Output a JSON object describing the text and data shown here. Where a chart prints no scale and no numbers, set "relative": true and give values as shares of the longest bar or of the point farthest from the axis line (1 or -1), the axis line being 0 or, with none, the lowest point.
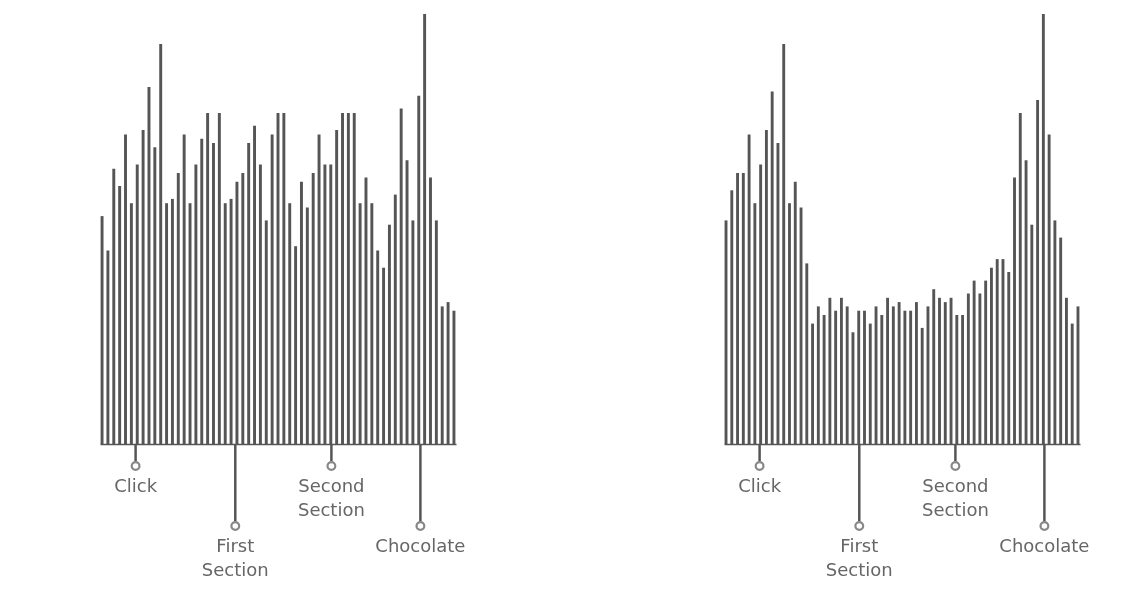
{
  "chart_data": [
    {
      "type": "bar",
      "relative": true,
      "color": "#555555",
      "categories": [
        null,
        null,
        null,
        null,
        null,
        null,
        null,
        null,
        null,
        null,
        null,
        null,
        null,
        null,
        null,
        null,
        null,
        null,
        null,
        null,
        null,
        null,
        null,
        null,
        null,
        null,
        null,
        null,
        null,
        null,
        null,
        null,
        null,
        null,
        null,
        null,
        null,
        null,
        null,
        null,
        null,
        null,
        null,
        null,
        null,
        null,
        null,
        null,
        null,
        null,
        null,
        null,
        null,
        null,
        null,
        null,
        null,
        null,
        null,
        null,
        null
      ],
      "values": [
        0.53,
        0.45,
        0.64,
        0.6,
        0.72,
        0.56,
        0.65,
        0.73,
        0.83,
        0.69,
        0.93,
        0.56,
        0.57,
        0.63,
        0.72,
        0.56,
        0.65,
        0.71,
        0.77,
        0.7,
        0.77,
        0.56,
        0.57,
        0.61,
        0.63,
        0.7,
        0.74,
        0.65,
        0.52,
        0.72,
        0.77,
        0.77,
        0.56,
        0.46,
        0.61,
        0.55,
        0.63,
        0.72,
        0.65,
        0.65,
        0.73,
        0.77,
        0.77,
        0.77,
        0.56,
        0.62,
        0.56,
        0.45,
        0.41,
        0.51,
        0.58,
        0.78,
        0.66,
        0.52,
        0.81,
        1,
        0.62,
        0.52,
        0.32,
        0.33,
        0.31
      ],
      "annotations": [
        "Click",
        "First Section",
        "Second Section",
        "Chocolate"
      ]
    },
    {
      "type": "bar",
      "relative": true,
      "color": "#555555",
      "categories": [
        null,
        null,
        null,
        null,
        null,
        null,
        null,
        null,
        null,
        null,
        null,
        null,
        null,
        null,
        null,
        null,
        null,
        null,
        null,
        null,
        null,
        null,
        null,
        null,
        null,
        null,
        null,
        null,
        null,
        null,
        null,
        null,
        null,
        null,
        null,
        null,
        null,
        null,
        null,
        null,
        null,
        null,
        null,
        null,
        null,
        null,
        null,
        null,
        null,
        null,
        null,
        null,
        null,
        null,
        null,
        null,
        null,
        null,
        null,
        null,
        null,
        null
      ],
      "values": [
        0.52,
        0.59,
        0.63,
        0.63,
        0.72,
        0.56,
        0.65,
        0.73,
        0.82,
        0.7,
        0.93,
        0.56,
        0.61,
        0.55,
        0.42,
        0.28,
        0.32,
        0.3,
        0.34,
        0.31,
        0.34,
        0.32,
        0.26,
        0.31,
        0.31,
        0.28,
        0.32,
        0.3,
        0.34,
        0.32,
        0.33,
        0.31,
        0.31,
        0.33,
        0.27,
        0.32,
        0.36,
        0.34,
        0.33,
        0.34,
        0.3,
        0.3,
        0.35,
        0.38,
        0.35,
        0.38,
        0.41,
        0.43,
        0.43,
        0.4,
        0.62,
        0.77,
        0.66,
        0.51,
        0.8,
        1,
        0.72,
        0.52,
        0.48,
        0.34,
        0.28,
        0.32
      ],
      "annotations": [
        "Click",
        "First Section",
        "Second Section",
        "Chocolate"
      ]
    }
  ]
}
